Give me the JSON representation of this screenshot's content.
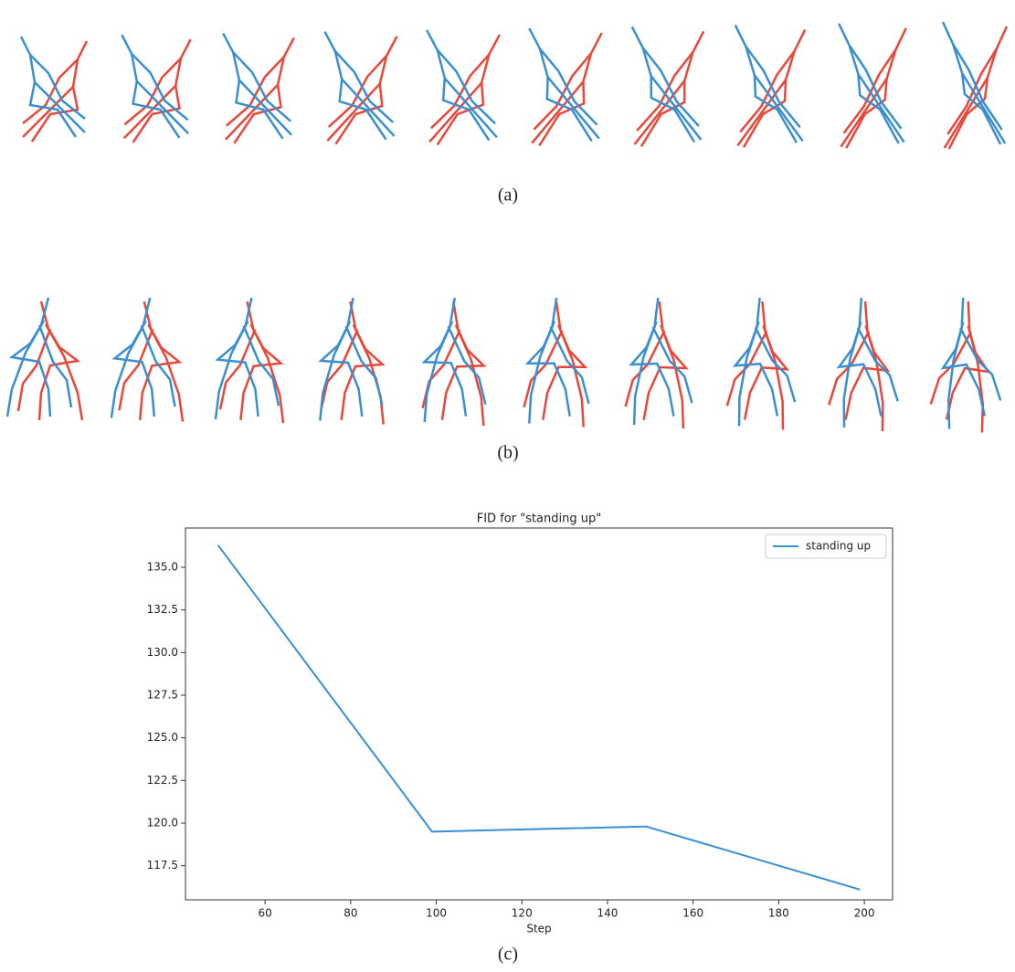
{
  "captions": [
    "(a)",
    "(b)",
    "(c)"
  ],
  "chart_data": {
    "type": "line",
    "title": "FID for \"standing up\"",
    "xlabel": "Step",
    "x": [
      49,
      99,
      149,
      199
    ],
    "series": [
      {
        "name": "standing up",
        "color": "#3a8fd0",
        "values": [
          136.3,
          119.5,
          119.8,
          116.1
        ]
      }
    ],
    "xlim": [
      41.4,
      206.6
    ],
    "ylim": [
      115.5,
      137.3
    ],
    "xticks": [
      60,
      80,
      100,
      120,
      140,
      160,
      180,
      200
    ],
    "yticks": [
      {
        "value": 117.5,
        "label": "117.5"
      },
      {
        "value": 120,
        "label": "120.0"
      },
      {
        "value": 122.5,
        "label": "122.5"
      },
      {
        "value": 125,
        "label": "125.0"
      },
      {
        "value": 127.5,
        "label": "127.5"
      },
      {
        "value": 130,
        "label": "130.0"
      },
      {
        "value": 132.5,
        "label": "132.5"
      },
      {
        "value": 135,
        "label": "135.0"
      }
    ],
    "legend": "upper right",
    "grid": false
  }
}
